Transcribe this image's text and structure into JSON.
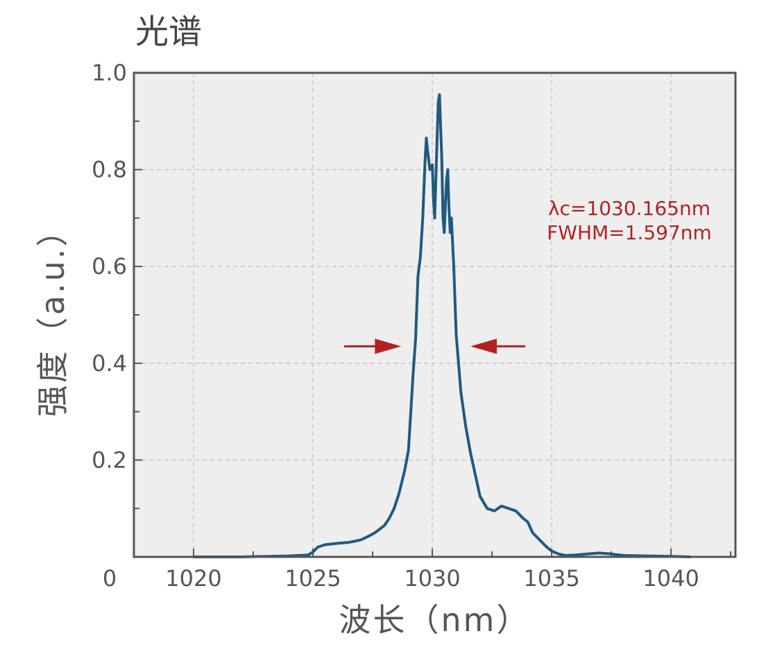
{
  "chart_data": {
    "type": "line",
    "title": "光谱",
    "xlabel": "波长（nm）",
    "ylabel": "强度（a.u.）",
    "xlim": [
      1017.5,
      1042.7
    ],
    "ylim": [
      0,
      1.0
    ],
    "x_ticks": [
      1020,
      1025,
      1030,
      1035,
      1040
    ],
    "x_tick_labels": [
      "1020",
      "1025",
      "1030",
      "1035",
      "1040"
    ],
    "y_ticks": [
      0.2,
      0.4,
      0.6,
      0.8,
      1.0
    ],
    "y_tick_labels": [
      "0.2",
      "0.4",
      "0.6",
      "0.8",
      "1.0"
    ],
    "origin_label": "0",
    "grid": true,
    "colors": {
      "line": "#1f5a7f",
      "annotation": "#b22222",
      "plot_background": "#eeeeee",
      "frame": "#555555",
      "grid": "#c8c8c8"
    },
    "annotations": {
      "center_wavelength": "λc=1030.165nm",
      "fwhm": "FWHM=1.597nm",
      "fwhm_arrows_level": 0.435,
      "fwhm_left_arrow": {
        "from": 1026.3,
        "to": 1028.7
      },
      "fwhm_right_arrow": {
        "from": 1033.9,
        "to": 1031.6
      }
    },
    "series": [
      {
        "x": [
          1020.0,
          1022.0,
          1024.0,
          1024.8,
          1025.0,
          1025.2,
          1025.5,
          1026.0,
          1026.5,
          1027.0,
          1027.3,
          1027.6,
          1028.0,
          1028.2,
          1028.4,
          1028.6,
          1028.75,
          1028.85,
          1029.0,
          1029.1,
          1029.2,
          1029.3,
          1029.4,
          1029.5,
          1029.6,
          1029.7,
          1029.75,
          1029.8,
          1029.9,
          1030.0,
          1030.05,
          1030.1,
          1030.2,
          1030.25,
          1030.3,
          1030.4,
          1030.45,
          1030.5,
          1030.55,
          1030.6,
          1030.65,
          1030.7,
          1030.75,
          1030.8,
          1030.9,
          1031.0,
          1031.2,
          1031.4,
          1031.6,
          1031.8,
          1032.0,
          1032.3,
          1032.6,
          1032.9,
          1033.2,
          1033.5,
          1033.8,
          1034.0,
          1034.2,
          1034.5,
          1034.8,
          1035.0,
          1035.3,
          1035.6,
          1036.0,
          1036.5,
          1037.0,
          1037.5,
          1038.0,
          1039.0,
          1040.0,
          1040.8
        ],
        "y": [
          0.0,
          0.0,
          0.002,
          0.004,
          0.01,
          0.02,
          0.025,
          0.028,
          0.03,
          0.035,
          0.042,
          0.05,
          0.065,
          0.08,
          0.1,
          0.13,
          0.16,
          0.18,
          0.22,
          0.3,
          0.38,
          0.45,
          0.58,
          0.62,
          0.7,
          0.82,
          0.865,
          0.84,
          0.8,
          0.81,
          0.74,
          0.7,
          0.86,
          0.94,
          0.955,
          0.82,
          0.7,
          0.67,
          0.73,
          0.78,
          0.8,
          0.72,
          0.67,
          0.7,
          0.6,
          0.46,
          0.34,
          0.27,
          0.215,
          0.17,
          0.125,
          0.1,
          0.095,
          0.105,
          0.1,
          0.095,
          0.08,
          0.072,
          0.05,
          0.035,
          0.02,
          0.012,
          0.006,
          0.003,
          0.004,
          0.006,
          0.008,
          0.006,
          0.003,
          0.002,
          0.001,
          0.0
        ]
      }
    ]
  }
}
